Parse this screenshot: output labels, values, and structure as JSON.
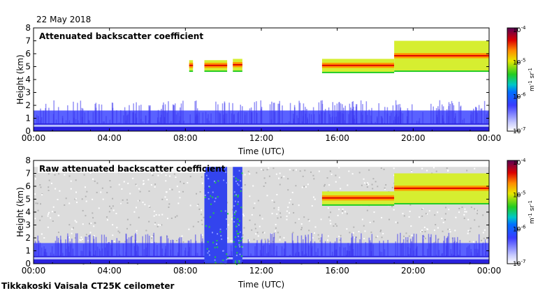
{
  "header": {
    "date": "22 May 2018"
  },
  "footer": {
    "site": "Tikkakoski Vaisala CT25K ceilometer"
  },
  "chart_data": [
    {
      "type": "heatmap",
      "title": "Attenuated backscatter coefficient",
      "xlabel": "Time (UTC)",
      "ylabel": "Height (km)",
      "xticks": [
        "00:00",
        "04:00",
        "08:00",
        "12:00",
        "16:00",
        "20:00",
        "00:00"
      ],
      "yticks": [
        "0",
        "1",
        "2",
        "3",
        "4",
        "5",
        "6",
        "7",
        "8"
      ],
      "xlim_hours": [
        0,
        24
      ],
      "ylim_km": [
        0,
        8
      ],
      "colorbar": {
        "scale": "log",
        "min": "10-7",
        "max": "10-4",
        "ticks": [
          [
            "10",
            "-4"
          ],
          [
            "10",
            "-5"
          ],
          [
            "10",
            "-6"
          ],
          [
            "10",
            "-7"
          ]
        ],
        "label": "m-1 sr-1"
      },
      "features": [
        {
          "name": "boundary layer",
          "t_start": 0,
          "t_end": 24,
          "h_base": 0,
          "h_top": 1.6
        },
        {
          "name": "cloud layer",
          "t_start": 8.2,
          "t_end": 8.4,
          "h_base": 4.7,
          "h_top": 5.5
        },
        {
          "name": "cloud layer",
          "t_start": 9.0,
          "t_end": 10.2,
          "h_base": 4.7,
          "h_top": 5.5
        },
        {
          "name": "cloud layer",
          "t_start": 10.5,
          "t_end": 11.0,
          "h_base": 4.7,
          "h_top": 5.6
        },
        {
          "name": "cloud layer",
          "t_start": 15.2,
          "t_end": 19.0,
          "h_base": 4.6,
          "h_top": 5.6
        },
        {
          "name": "cloud layer",
          "t_start": 19.0,
          "t_end": 24.0,
          "h_base": 4.7,
          "h_top": 7.0
        }
      ]
    },
    {
      "type": "heatmap",
      "title": "Raw attenuated backscatter coefficient",
      "xlabel": "Time (UTC)",
      "ylabel": "Height (km)",
      "xticks": [
        "00:00",
        "04:00",
        "08:00",
        "12:00",
        "16:00",
        "20:00",
        "00:00"
      ],
      "yticks": [
        "0",
        "1",
        "2",
        "3",
        "4",
        "5",
        "6",
        "7",
        "8"
      ],
      "xlim_hours": [
        0,
        24
      ],
      "ylim_km": [
        0,
        8
      ],
      "colorbar": {
        "scale": "log",
        "min": "10-7",
        "max": "10-4",
        "ticks": [
          [
            "10",
            "-4"
          ],
          [
            "10",
            "-5"
          ],
          [
            "10",
            "-6"
          ],
          [
            "10",
            "-7"
          ]
        ],
        "label": "m-1 sr-1"
      },
      "features": [
        {
          "name": "noise background",
          "t_start": 0,
          "t_end": 24,
          "h_base": 0,
          "h_top": 7.5
        },
        {
          "name": "boundary layer",
          "t_start": 0,
          "t_end": 24,
          "h_base": 0,
          "h_top": 1.6
        },
        {
          "name": "precipitation column",
          "t_start": 9.0,
          "t_end": 10.2,
          "h_base": 0,
          "h_top": 7.5
        },
        {
          "name": "precipitation column",
          "t_start": 10.5,
          "t_end": 11.0,
          "h_base": 0,
          "h_top": 7.5
        },
        {
          "name": "cloud layer",
          "t_start": 15.2,
          "t_end": 19.0,
          "h_base": 4.6,
          "h_top": 5.6
        },
        {
          "name": "cloud layer",
          "t_start": 19.0,
          "t_end": 24.0,
          "h_base": 4.7,
          "h_top": 7.0
        }
      ]
    }
  ]
}
